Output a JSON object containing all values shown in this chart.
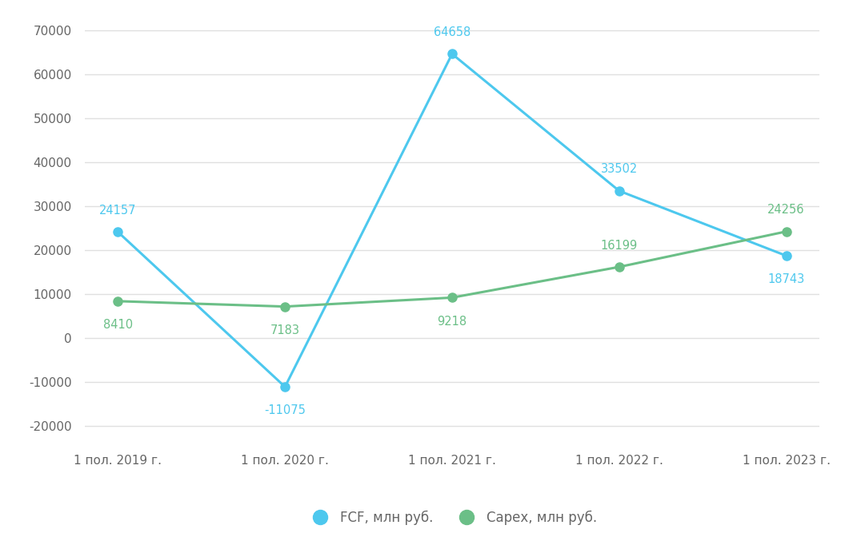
{
  "categories": [
    "1 пол. 2019 г.",
    "1 пол. 2020 г.",
    "1 пол. 2021 г.",
    "1 пол. 2022 г.",
    "1 пол. 2023 г."
  ],
  "fcf_values": [
    24157,
    -11075,
    64658,
    33502,
    18743
  ],
  "capex_values": [
    8410,
    7183,
    9218,
    16199,
    24256
  ],
  "fcf_color": "#4DC8EE",
  "capex_color": "#6BBF87",
  "fcf_label": "FCF, млн руб.",
  "capex_label": "Сарех, млн руб.",
  "ylim": [
    -24000,
    72000
  ],
  "yticks": [
    -20000,
    -10000,
    0,
    10000,
    20000,
    30000,
    40000,
    50000,
    60000,
    70000
  ],
  "background_color": "#ffffff",
  "plot_bg_color": "#ffffff",
  "grid_color": "#e0e0e0",
  "marker_size": 8,
  "line_width": 2.2,
  "tick_label_color": "#666666",
  "annotation_fontsize": 10.5
}
